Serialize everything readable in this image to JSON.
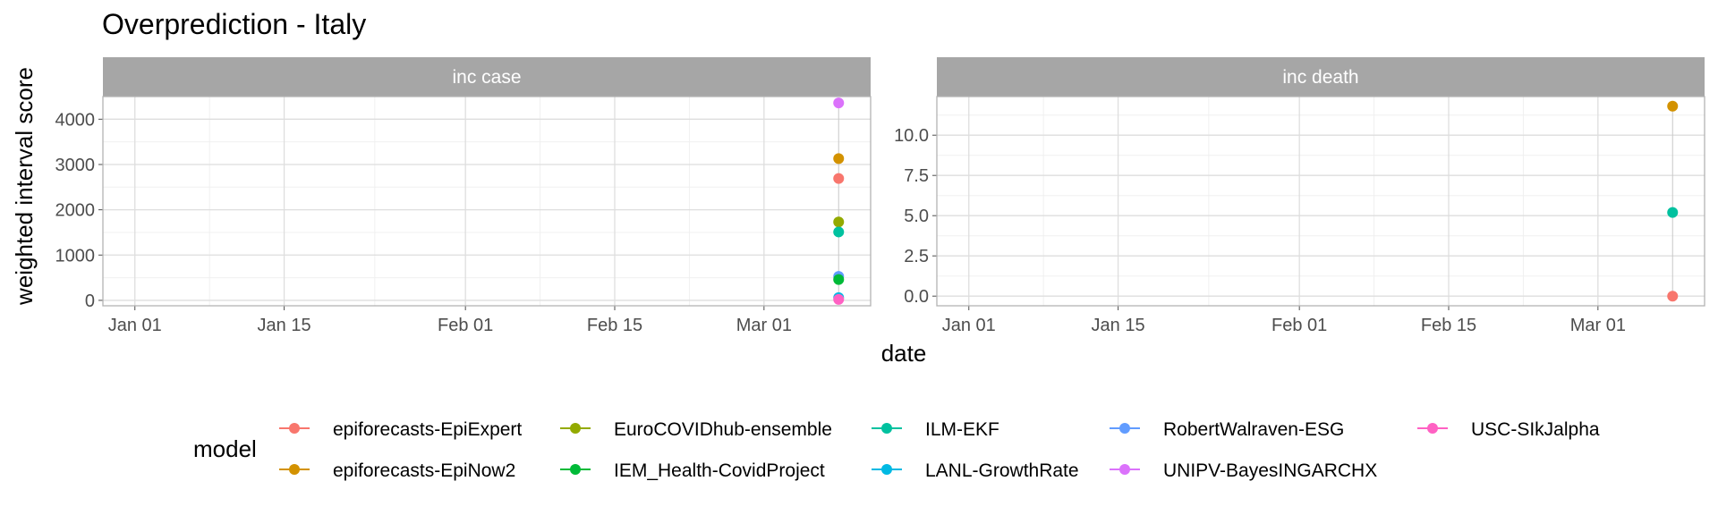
{
  "chart_data": {
    "type": "scatter",
    "title": "Overprediction - Italy",
    "xlabel": "date",
    "ylabel": "weighted interval score",
    "x_ticks": [
      "Jan 01",
      "Jan 15",
      "Feb 01",
      "Feb 15",
      "Mar 01"
    ],
    "x_tick_dates": [
      "2021-01-01",
      "2021-01-15",
      "2021-02-01",
      "2021-02-15",
      "2021-03-01"
    ],
    "xlim": [
      "2020-12-29",
      "2021-03-11"
    ],
    "legend": {
      "title": "model",
      "position": "bottom"
    },
    "grid": true,
    "models": [
      {
        "name": "epiforecasts-EpiExpert",
        "color": "#F8766D"
      },
      {
        "name": "epiforecasts-EpiNow2",
        "color": "#D39200"
      },
      {
        "name": "EuroCOVIDhub-ensemble",
        "color": "#93AA00"
      },
      {
        "name": "IEM_Health-CovidProject",
        "color": "#00BA38"
      },
      {
        "name": "ILM-EKF",
        "color": "#00C19F"
      },
      {
        "name": "LANL-GrowthRate",
        "color": "#00B9E3"
      },
      {
        "name": "RobertWalraven-ESG",
        "color": "#619CFF"
      },
      {
        "name": "UNIPV-BayesINGARCHX",
        "color": "#DB72FB"
      },
      {
        "name": "USC-SIkJalpha",
        "color": "#FF61C3"
      }
    ],
    "panels": [
      {
        "strip": "inc case",
        "ylim": [
          -120,
          4500
        ],
        "y_ticks": [
          0,
          1000,
          2000,
          3000,
          4000
        ],
        "y_tick_labels": [
          "0",
          "1000",
          "2000",
          "3000",
          "4000"
        ],
        "points": [
          {
            "model": "UNIPV-BayesINGARCHX",
            "x": "2021-03-08",
            "y": 4360
          },
          {
            "model": "epiforecasts-EpiNow2",
            "x": "2021-03-08",
            "y": 3130
          },
          {
            "model": "epiforecasts-EpiExpert",
            "x": "2021-03-08",
            "y": 2690
          },
          {
            "model": "EuroCOVIDhub-ensemble",
            "x": "2021-03-08",
            "y": 1730
          },
          {
            "model": "ILM-EKF",
            "x": "2021-03-08",
            "y": 1510
          },
          {
            "model": "RobertWalraven-ESG",
            "x": "2021-03-08",
            "y": 530
          },
          {
            "model": "IEM_Health-CovidProject",
            "x": "2021-03-08",
            "y": 460
          },
          {
            "model": "LANL-GrowthRate",
            "x": "2021-03-08",
            "y": 60
          },
          {
            "model": "USC-SIkJalpha",
            "x": "2021-03-08",
            "y": 20
          }
        ]
      },
      {
        "strip": "inc death",
        "ylim": [
          -0.6,
          12.4
        ],
        "y_ticks": [
          0,
          2.5,
          5,
          7.5,
          10
        ],
        "y_tick_labels": [
          "0.0",
          "2.5",
          "5.0",
          "7.5",
          "10.0"
        ],
        "points": [
          {
            "model": "epiforecasts-EpiNow2",
            "x": "2021-03-08",
            "y": 11.8
          },
          {
            "model": "ILM-EKF",
            "x": "2021-03-08",
            "y": 5.2
          },
          {
            "model": "epiforecasts-EpiExpert",
            "x": "2021-03-08",
            "y": 0
          }
        ]
      }
    ]
  }
}
